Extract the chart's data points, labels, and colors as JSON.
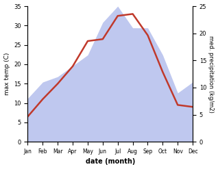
{
  "months": [
    "Jan",
    "Feb",
    "Mar",
    "Apr",
    "May",
    "Jun",
    "Jul",
    "Aug",
    "Sep",
    "Oct",
    "Nov",
    "Dec"
  ],
  "month_indices": [
    1,
    2,
    3,
    4,
    5,
    6,
    7,
    8,
    9,
    10,
    11,
    12
  ],
  "temperature": [
    6.5,
    11.0,
    15.0,
    19.5,
    26.0,
    26.5,
    32.5,
    33.0,
    27.5,
    18.0,
    9.5,
    9.0
  ],
  "precipitation": [
    8,
    11,
    12,
    14,
    16,
    22,
    25,
    21,
    21,
    16,
    9,
    11
  ],
  "temp_color": "#c0392b",
  "precip_fill_color": "#bfc8ef",
  "ylabel_left": "max temp (C)",
  "ylabel_right": "med. precipitation (kg/m2)",
  "xlabel": "date (month)",
  "ylim_left": [
    0,
    35
  ],
  "ylim_right": [
    0,
    25
  ],
  "yticks_left": [
    0,
    5,
    10,
    15,
    20,
    25,
    30,
    35
  ],
  "yticks_right": [
    0,
    5,
    10,
    15,
    20,
    25
  ],
  "background_color": "#ffffff",
  "line_width": 1.8
}
